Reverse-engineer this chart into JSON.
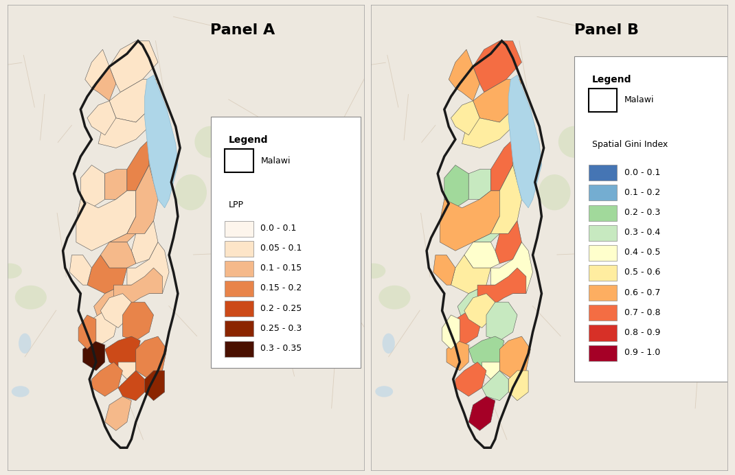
{
  "panel_a_title": "Panel A",
  "panel_b_title": "Panel B",
  "bg_color": "#f0ebe3",
  "map_bg": "#ede8df",
  "legend_a_title": "Legend",
  "legend_a_subtitle": "LPP",
  "legend_b_title": "Legend",
  "legend_b_subtitle": "Spatial Gini Index",
  "malawi_label": "Malawi",
  "lpp_colors": [
    "#fdf5ec",
    "#fde5c8",
    "#f5b98a",
    "#e8844a",
    "#cc4a18",
    "#8b2500",
    "#4a1000"
  ],
  "lpp_labels": [
    "0.0 - 0.1",
    "0.05 - 0.1",
    "0.1 - 0.15",
    "0.15 - 0.2",
    "0.2 - 0.25",
    "0.25 - 0.3",
    "0.3 - 0.35"
  ],
  "gini_colors": [
    "#4575b4",
    "#74add1",
    "#a1d99b",
    "#c7e9c0",
    "#ffffcc",
    "#ffeda0",
    "#fdae61",
    "#f46d43",
    "#d73027",
    "#a50026"
  ],
  "gini_labels": [
    "0.0 - 0.1",
    "0.1 - 0.2",
    "0.2 - 0.3",
    "0.3 - 0.4",
    "0.4 - 0.5",
    "0.5 - 0.6",
    "0.6 - 0.7",
    "0.7 - 0.8",
    "0.8 - 0.9",
    "0.9 - 1.0"
  ],
  "lake_color": "#aed6e8",
  "border_color": "#1a1a1a",
  "district_border": "#555555",
  "title_fontsize": 16,
  "legend_fontsize": 9,
  "figsize": [
    10.7,
    6.92
  ]
}
